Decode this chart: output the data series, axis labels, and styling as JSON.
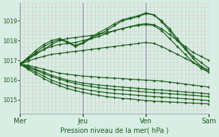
{
  "bg_color": "#d8ede4",
  "grid_color_h": "#e8c8c8",
  "grid_color_v": "#c0ccc8",
  "line_color": "#1a5c1a",
  "marker": "+",
  "xlabel": "Pression niveau de la mer( hPa )",
  "xlabel_color": "#1a5c1a",
  "day_labels": [
    "Mer",
    "Jeu",
    "Ven",
    "Sam"
  ],
  "day_positions": [
    0,
    8,
    16,
    24
  ],
  "ylim": [
    1014.3,
    1019.9
  ],
  "yticks": [
    1015,
    1016,
    1017,
    1018,
    1019
  ],
  "total_steps": 24,
  "series": [
    [
      1016.8,
      1017.05,
      1017.3,
      1017.55,
      1017.8,
      1018.0,
      1018.1,
      1018.15,
      1018.2,
      1018.25,
      1018.3,
      1018.4,
      1018.5,
      1018.6,
      1018.7,
      1018.75,
      1018.8,
      1018.75,
      1018.5,
      1018.1,
      1017.7,
      1017.3,
      1016.9,
      1016.6,
      1016.4
    ],
    [
      1016.8,
      1017.1,
      1017.4,
      1017.7,
      1017.9,
      1018.05,
      1017.9,
      1017.7,
      1017.85,
      1018.1,
      1018.3,
      1018.5,
      1018.75,
      1019.0,
      1019.1,
      1019.2,
      1019.35,
      1019.3,
      1019.0,
      1018.6,
      1018.1,
      1017.6,
      1017.2,
      1016.9,
      1016.6
    ],
    [
      1016.8,
      1017.15,
      1017.5,
      1017.8,
      1018.0,
      1018.1,
      1017.95,
      1017.75,
      1017.9,
      1018.15,
      1018.4,
      1018.6,
      1018.85,
      1019.05,
      1019.15,
      1019.25,
      1019.4,
      1019.3,
      1018.95,
      1018.5,
      1018.0,
      1017.55,
      1017.1,
      1016.7,
      1016.4
    ],
    [
      1016.85,
      1017.1,
      1017.35,
      1017.55,
      1017.7,
      1017.8,
      1017.85,
      1017.9,
      1018.0,
      1018.1,
      1018.2,
      1018.35,
      1018.5,
      1018.6,
      1018.7,
      1018.8,
      1018.85,
      1018.8,
      1018.6,
      1018.3,
      1018.0,
      1017.7,
      1017.4,
      1017.2,
      1017.0
    ],
    [
      1016.8,
      1016.95,
      1017.1,
      1017.2,
      1017.3,
      1017.35,
      1017.4,
      1017.45,
      1017.5,
      1017.55,
      1017.6,
      1017.65,
      1017.7,
      1017.75,
      1017.8,
      1017.85,
      1017.9,
      1017.85,
      1017.7,
      1017.5,
      1017.3,
      1017.1,
      1016.9,
      1016.7,
      1016.5
    ],
    [
      1016.8,
      1016.75,
      1016.65,
      1016.55,
      1016.45,
      1016.35,
      1016.3,
      1016.25,
      1016.2,
      1016.18,
      1016.15,
      1016.12,
      1016.1,
      1016.08,
      1016.05,
      1016.02,
      1016.0,
      1015.98,
      1015.95,
      1015.9,
      1015.85,
      1015.8,
      1015.75,
      1015.7,
      1015.65
    ],
    [
      1016.8,
      1016.7,
      1016.55,
      1016.4,
      1016.25,
      1016.12,
      1016.0,
      1015.92,
      1015.85,
      1015.8,
      1015.75,
      1015.72,
      1015.68,
      1015.65,
      1015.62,
      1015.58,
      1015.55,
      1015.52,
      1015.5,
      1015.47,
      1015.43,
      1015.4,
      1015.37,
      1015.35,
      1015.3
    ],
    [
      1016.8,
      1016.65,
      1016.5,
      1016.33,
      1016.18,
      1016.05,
      1015.93,
      1015.83,
      1015.75,
      1015.68,
      1015.62,
      1015.57,
      1015.53,
      1015.5,
      1015.47,
      1015.43,
      1015.4,
      1015.37,
      1015.35,
      1015.32,
      1015.29,
      1015.26,
      1015.23,
      1015.2,
      1015.17
    ],
    [
      1016.8,
      1016.6,
      1016.4,
      1016.2,
      1016.0,
      1015.85,
      1015.73,
      1015.63,
      1015.55,
      1015.48,
      1015.42,
      1015.37,
      1015.33,
      1015.3,
      1015.27,
      1015.23,
      1015.2,
      1015.17,
      1015.15,
      1015.12,
      1015.09,
      1015.06,
      1015.03,
      1015.0,
      1014.97
    ],
    [
      1016.8,
      1016.55,
      1016.3,
      1016.08,
      1015.88,
      1015.72,
      1015.58,
      1015.47,
      1015.38,
      1015.3,
      1015.23,
      1015.17,
      1015.12,
      1015.08,
      1015.05,
      1015.01,
      1014.97,
      1014.94,
      1014.92,
      1014.9,
      1014.88,
      1014.86,
      1014.84,
      1014.82,
      1014.8
    ]
  ]
}
